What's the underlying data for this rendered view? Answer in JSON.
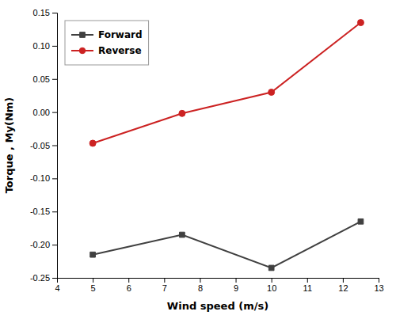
{
  "chart_data": {
    "type": "line",
    "x": [
      5,
      7.5,
      10,
      12.5
    ],
    "series": [
      {
        "name": "Forward",
        "color": "#404040",
        "marker": "square",
        "values": [
          -0.215,
          -0.185,
          -0.235,
          -0.165
        ]
      },
      {
        "name": "Reverse",
        "color": "#cc2222",
        "marker": "circle",
        "values": [
          -0.047,
          -0.002,
          0.03,
          0.135
        ]
      }
    ],
    "xlabel": "Wind speed (m/s)",
    "ylabel": "Torque , My(Nm)",
    "xlim": [
      4,
      13
    ],
    "ylim": [
      -0.25,
      0.15
    ],
    "xticks": [
      4,
      5,
      6,
      7,
      8,
      9,
      10,
      11,
      12,
      13
    ],
    "yticks": [
      -0.25,
      {
        "value": -0.2,
        "label": "-0.20"
      },
      -0.15,
      {
        "value": -0.1,
        "label": "-0.10"
      },
      -0.05,
      {
        "value": 0,
        "label": "0.00"
      },
      0.05,
      {
        "value": 0.1,
        "label": "0.10"
      },
      0.15
    ],
    "legend": "upper left"
  }
}
